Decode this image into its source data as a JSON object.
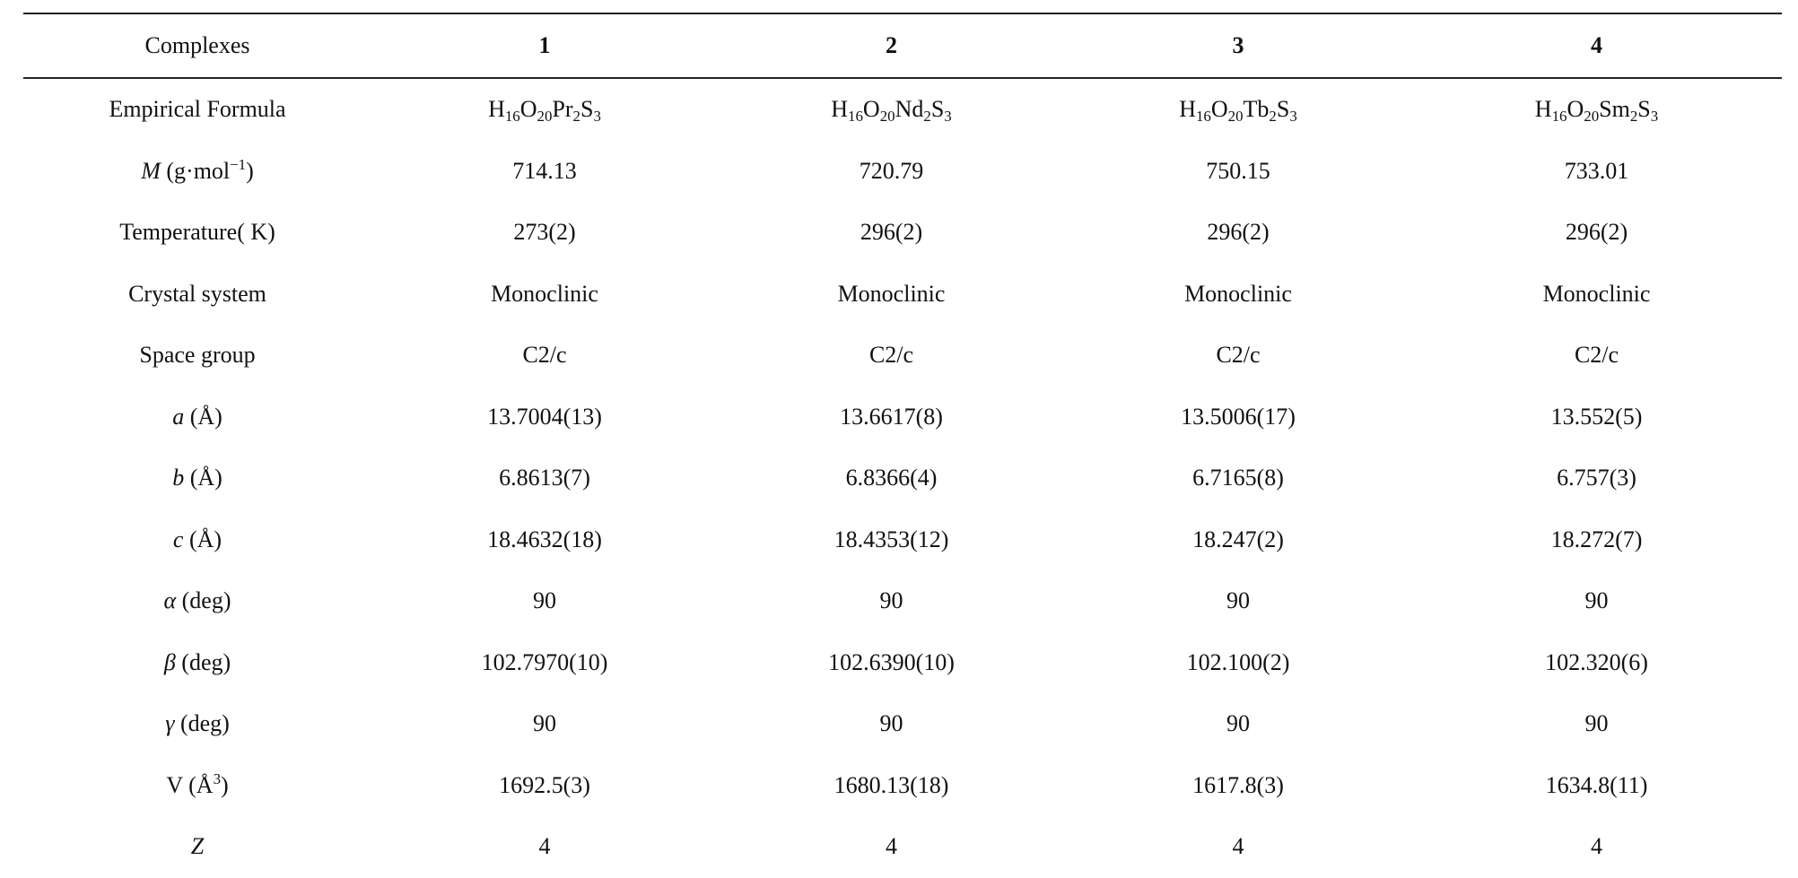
{
  "table": {
    "header": {
      "label": "Complexes",
      "columns": [
        "1",
        "2",
        "3",
        "4"
      ]
    },
    "rows": [
      {
        "label_parts": [
          {
            "t": "Empirical Formula"
          }
        ],
        "cells": [
          [
            {
              "t": "H"
            },
            {
              "t": "16",
              "sub": true
            },
            {
              "t": "O"
            },
            {
              "t": "20",
              "sub": true
            },
            {
              "t": "Pr"
            },
            {
              "t": "2",
              "sub": true
            },
            {
              "t": "S"
            },
            {
              "t": "3",
              "sub": true
            }
          ],
          [
            {
              "t": "H"
            },
            {
              "t": "16",
              "sub": true
            },
            {
              "t": "O"
            },
            {
              "t": "20",
              "sub": true
            },
            {
              "t": "Nd"
            },
            {
              "t": "2",
              "sub": true
            },
            {
              "t": "S"
            },
            {
              "t": "3",
              "sub": true
            }
          ],
          [
            {
              "t": "H"
            },
            {
              "t": "16",
              "sub": true
            },
            {
              "t": "O"
            },
            {
              "t": "20",
              "sub": true
            },
            {
              "t": "Tb"
            },
            {
              "t": "2",
              "sub": true
            },
            {
              "t": "S"
            },
            {
              "t": "3",
              "sub": true
            }
          ],
          [
            {
              "t": "H"
            },
            {
              "t": "16",
              "sub": true
            },
            {
              "t": "O"
            },
            {
              "t": "20",
              "sub": true
            },
            {
              "t": "Sm"
            },
            {
              "t": "2",
              "sub": true
            },
            {
              "t": "S"
            },
            {
              "t": "3",
              "sub": true
            }
          ]
        ]
      },
      {
        "label_parts": [
          {
            "t": "M",
            "it": true
          },
          {
            "t": " (g·mol"
          },
          {
            "t": "−1",
            "sup": true
          },
          {
            "t": ")"
          }
        ],
        "cells": [
          [
            {
              "t": "714.13"
            }
          ],
          [
            {
              "t": "720.79"
            }
          ],
          [
            {
              "t": "750.15"
            }
          ],
          [
            {
              "t": "733.01"
            }
          ]
        ]
      },
      {
        "label_parts": [
          {
            "t": "Temperature( K)"
          }
        ],
        "cells": [
          [
            {
              "t": "273(2)"
            }
          ],
          [
            {
              "t": "296(2)"
            }
          ],
          [
            {
              "t": "296(2)"
            }
          ],
          [
            {
              "t": "296(2)"
            }
          ]
        ]
      },
      {
        "label_parts": [
          {
            "t": "Crystal system"
          }
        ],
        "cells": [
          [
            {
              "t": "Monoclinic"
            }
          ],
          [
            {
              "t": "Monoclinic"
            }
          ],
          [
            {
              "t": "Monoclinic"
            }
          ],
          [
            {
              "t": "Monoclinic"
            }
          ]
        ]
      },
      {
        "label_parts": [
          {
            "t": "Space group"
          }
        ],
        "cells": [
          [
            {
              "t": "C2/c"
            }
          ],
          [
            {
              "t": "C2/c"
            }
          ],
          [
            {
              "t": "C2/c"
            }
          ],
          [
            {
              "t": "C2/c"
            }
          ]
        ]
      },
      {
        "label_parts": [
          {
            "t": "a",
            "it": true
          },
          {
            "t": " (Å)"
          }
        ],
        "cells": [
          [
            {
              "t": "13.7004(13)"
            }
          ],
          [
            {
              "t": "13.6617(8)"
            }
          ],
          [
            {
              "t": "13.5006(17)"
            }
          ],
          [
            {
              "t": "13.552(5)"
            }
          ]
        ]
      },
      {
        "label_parts": [
          {
            "t": "b",
            "it": true
          },
          {
            "t": " (Å)"
          }
        ],
        "cells": [
          [
            {
              "t": "6.8613(7)"
            }
          ],
          [
            {
              "t": "6.8366(4)"
            }
          ],
          [
            {
              "t": "6.7165(8)"
            }
          ],
          [
            {
              "t": "6.757(3)"
            }
          ]
        ]
      },
      {
        "label_parts": [
          {
            "t": "c",
            "it": true
          },
          {
            "t": " (Å)"
          }
        ],
        "cells": [
          [
            {
              "t": "18.4632(18)"
            }
          ],
          [
            {
              "t": "18.4353(12)"
            }
          ],
          [
            {
              "t": "18.247(2)"
            }
          ],
          [
            {
              "t": "18.272(7)"
            }
          ]
        ]
      },
      {
        "label_parts": [
          {
            "t": "α",
            "it": true
          },
          {
            "t": " (deg)"
          }
        ],
        "cells": [
          [
            {
              "t": "90"
            }
          ],
          [
            {
              "t": "90"
            }
          ],
          [
            {
              "t": "90"
            }
          ],
          [
            {
              "t": "90"
            }
          ]
        ]
      },
      {
        "label_parts": [
          {
            "t": "β",
            "it": true
          },
          {
            "t": " (deg)"
          }
        ],
        "cells": [
          [
            {
              "t": "102.7970(10)"
            }
          ],
          [
            {
              "t": "102.6390(10)"
            }
          ],
          [
            {
              "t": "102.100(2)"
            }
          ],
          [
            {
              "t": "102.320(6)"
            }
          ]
        ]
      },
      {
        "label_parts": [
          {
            "t": "γ",
            "it": true
          },
          {
            "t": " (deg)"
          }
        ],
        "cells": [
          [
            {
              "t": "90"
            }
          ],
          [
            {
              "t": "90"
            }
          ],
          [
            {
              "t": "90"
            }
          ],
          [
            {
              "t": "90"
            }
          ]
        ]
      },
      {
        "label_parts": [
          {
            "t": "V (Å"
          },
          {
            "t": "3",
            "sup": true
          },
          {
            "t": ")"
          }
        ],
        "cells": [
          [
            {
              "t": "1692.5(3)"
            }
          ],
          [
            {
              "t": "1680.13(18)"
            }
          ],
          [
            {
              "t": "1617.8(3)"
            }
          ],
          [
            {
              "t": "1634.8(11)"
            }
          ]
        ]
      },
      {
        "label_parts": [
          {
            "t": "Z",
            "it": true
          }
        ],
        "cells": [
          [
            {
              "t": "4"
            }
          ],
          [
            {
              "t": "4"
            }
          ],
          [
            {
              "t": "4"
            }
          ],
          [
            {
              "t": "4"
            }
          ]
        ]
      }
    ]
  }
}
